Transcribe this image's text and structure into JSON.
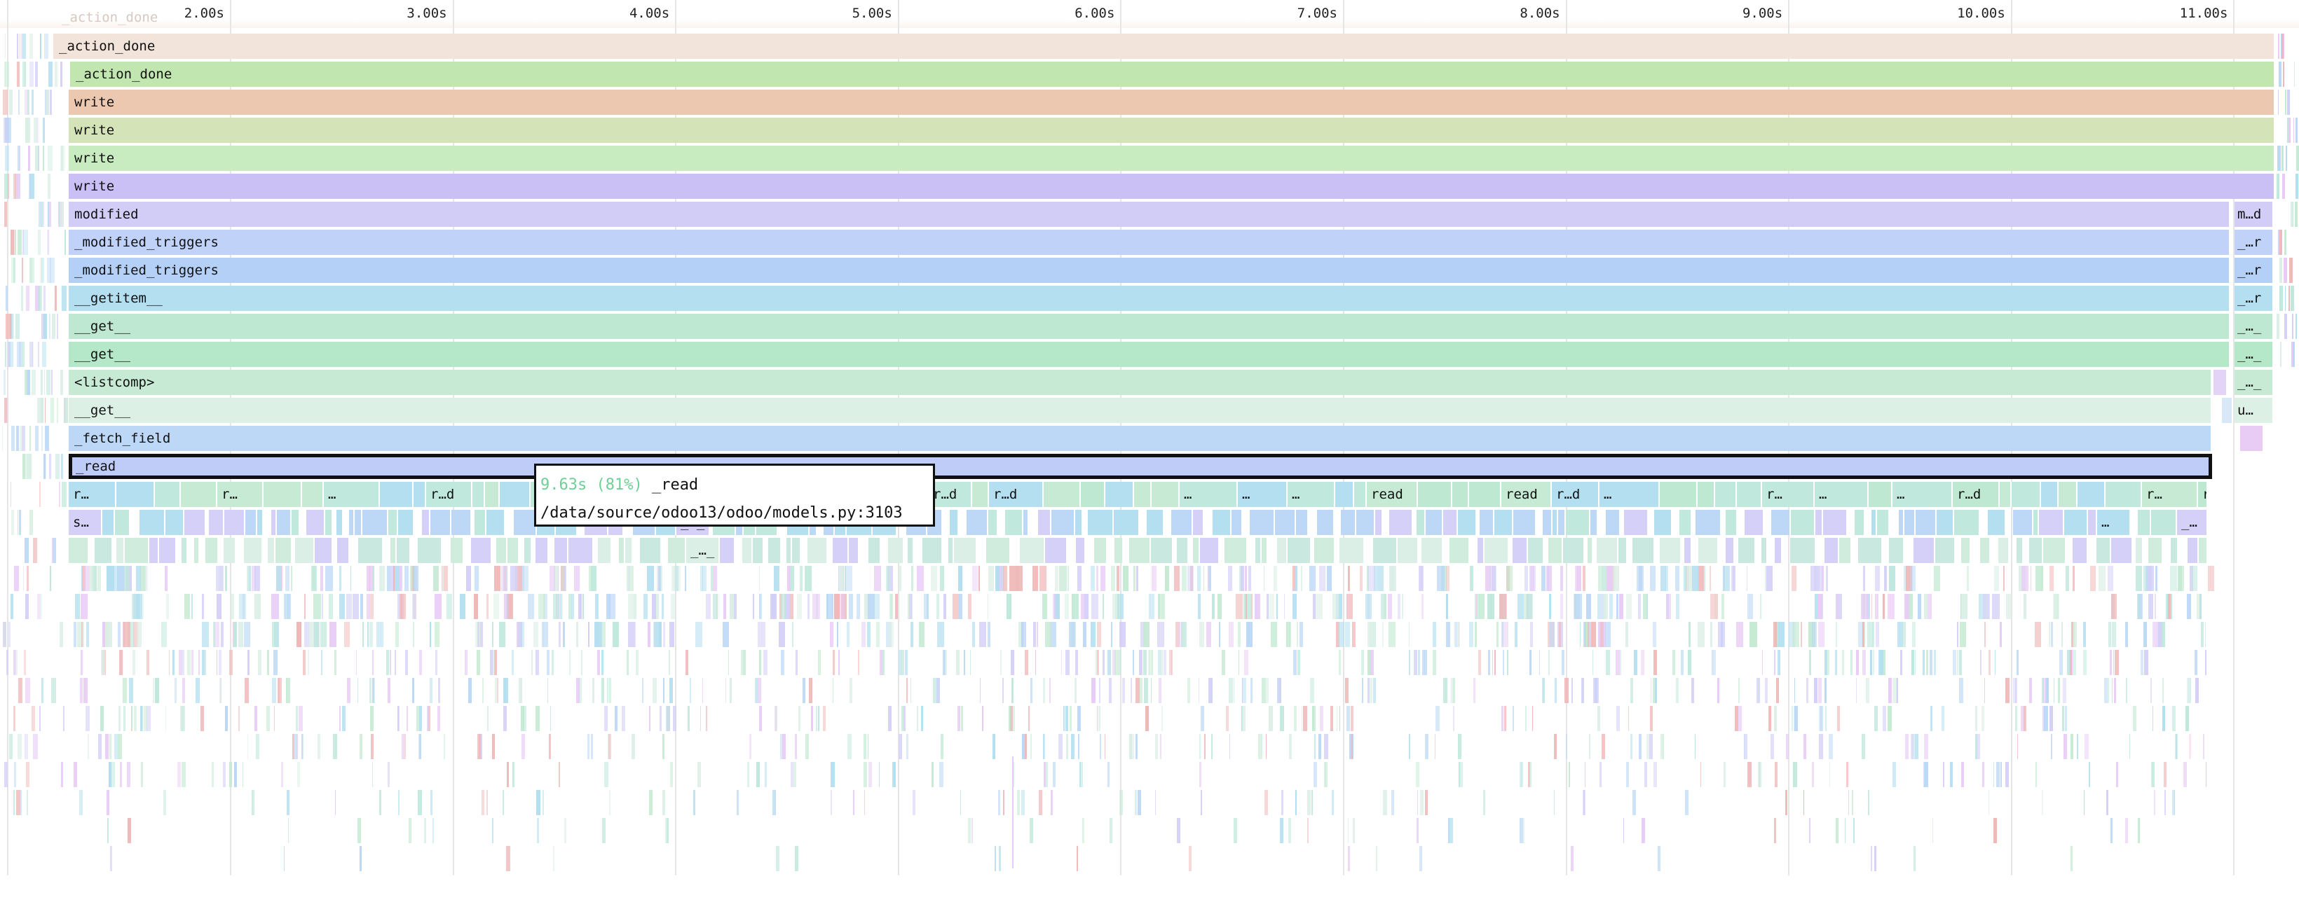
{
  "ruler": {
    "ticks": [
      "2.00s",
      "3.00s",
      "4.00s",
      "5.00s",
      "6.00s",
      "7.00s",
      "8.00s",
      "9.00s",
      "10.00s",
      "11.00s"
    ],
    "ghost_label": "_action_done"
  },
  "colors": {
    "ruler_bg": "#fbf3ee",
    "selected_border": "#111111",
    "tooltip_percent": "#6fcf97"
  },
  "stack": [
    {
      "label": "_action_done",
      "color": "#f2e4da"
    },
    {
      "label": "_action_done",
      "color": "#c2e6b0"
    },
    {
      "label": "write",
      "color": "#ecc8b0"
    },
    {
      "label": "write",
      "color": "#d5e4b8"
    },
    {
      "label": "write",
      "color": "#c9ebc0"
    },
    {
      "label": "write",
      "color": "#cbc0f6"
    },
    {
      "label": "modified",
      "color": "#d1cdf6"
    },
    {
      "label": "_modified_triggers",
      "color": "#c0d2f8"
    },
    {
      "label": "_modified_triggers",
      "color": "#b5d0f6"
    },
    {
      "label": "__getitem__",
      "color": "#b4dff0"
    },
    {
      "label": "__get__",
      "color": "#bfe8d2"
    },
    {
      "label": "__get__",
      "color": "#b4e8c8"
    },
    {
      "label": "<listcomp>",
      "color": "#c6ead4"
    },
    {
      "label": "__get__",
      "color": "#dcf0e6"
    },
    {
      "label": "_fetch_field",
      "color": "#bcd8f6"
    },
    {
      "label": "_read",
      "color": "#c0ccf8",
      "selected": true
    }
  ],
  "right_column": [
    {
      "label": "m…d",
      "color": "#d1cdf6"
    },
    {
      "label": "_…r",
      "color": "#c0d2f8"
    },
    {
      "label": "_…r",
      "color": "#b5d0f6"
    },
    {
      "label": "_…r",
      "color": "#b4dff0"
    },
    {
      "label": "_…_",
      "color": "#bfe8d2"
    },
    {
      "label": "_…_",
      "color": "#b4e8c8"
    },
    {
      "label": "_…_",
      "color": "#c6ead4"
    },
    {
      "label": "u…",
      "color": "#dcf0e6"
    }
  ],
  "child_row": {
    "labels": [
      "r…",
      "r…",
      "…",
      "r…d",
      "r…d",
      "r…d",
      "…",
      "…",
      "…",
      "read",
      "read",
      "r…d",
      "…",
      "r…",
      "…",
      "…",
      "r…d",
      "r…",
      "r…d"
    ],
    "second_row_labels": [
      "s…",
      "_…_",
      "…",
      "_…"
    ],
    "third_row_labels": [
      "_…_"
    ]
  },
  "tooltip": {
    "percent_text": "9.63s (81%)",
    "function": "_read",
    "location": "/data/source/odoo13/odoo/models.py:3103"
  }
}
